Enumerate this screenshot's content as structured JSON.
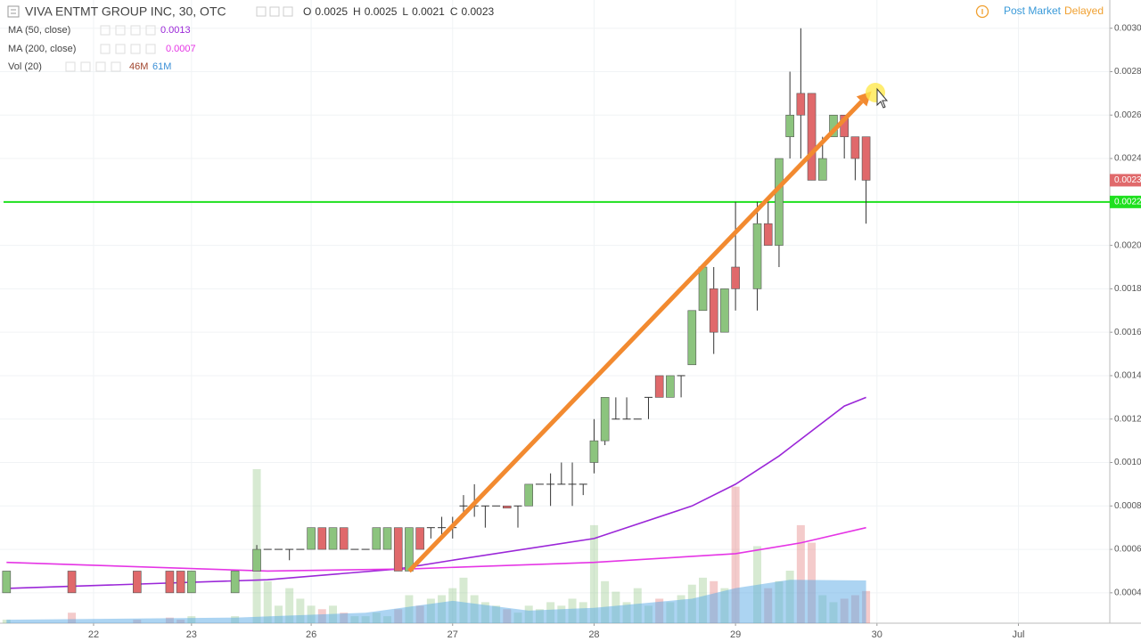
{
  "chart_data": {
    "type": "candlestick",
    "title": "VIVA ENTMT GROUP INC, 30, OTC",
    "ohlc_labels": [
      "O",
      "H",
      "L",
      "C"
    ],
    "status": [
      "Post Market",
      "Delayed"
    ],
    "x": [
      -8,
      -2,
      4,
      7,
      8,
      9,
      13,
      15,
      16,
      17,
      18,
      19,
      20,
      21,
      22,
      23,
      24,
      25,
      26,
      27,
      28,
      29,
      30,
      31,
      32,
      33,
      34,
      35,
      36,
      37,
      38,
      39,
      40,
      41,
      42,
      43,
      44,
      45,
      46,
      47,
      48,
      49,
      50,
      51,
      52,
      53,
      54,
      55,
      56,
      57,
      58,
      59,
      61,
      62,
      63,
      64,
      65,
      66,
      67,
      68,
      69,
      70,
      71
    ],
    "open": [
      0.0004,
      0.0005,
      0.0005,
      0.0005,
      0.0005,
      0.0004,
      0.0004,
      0.0005,
      0.0006,
      0.0006,
      0.0006,
      0.0006,
      0.0006,
      0.0007,
      0.0006,
      0.0007,
      0.0006,
      0.0006,
      0.0006,
      0.0006,
      0.0007,
      0.0005,
      0.0007,
      0.0007,
      0.0007,
      0.0007,
      0.0008,
      0.0008,
      0.0008,
      0.0008,
      0.0008,
      0.0008,
      0.0008,
      0.0009,
      0.0009,
      0.0009,
      0.0009,
      0.0009,
      0.001,
      0.0011,
      0.0012,
      0.0012,
      0.0012,
      0.0013,
      0.0014,
      0.0013,
      0.0014,
      0.00145,
      0.0017,
      0.0018,
      0.0016,
      0.0019,
      0.0018,
      0.0021,
      0.002,
      0.0025,
      0.0027,
      0.0027,
      0.0023,
      0.0025,
      0.0026,
      0.0025,
      0.0025
    ],
    "high": [
      0.0005,
      0.0005,
      0.0005,
      0.0005,
      0.0005,
      0.0005,
      0.0005,
      0.00062,
      0.0006,
      0.0006,
      0.0006,
      0.0006,
      0.0007,
      0.0007,
      0.0007,
      0.0007,
      0.0006,
      0.0006,
      0.0007,
      0.0007,
      0.0007,
      0.0007,
      0.0007,
      0.0007,
      0.00075,
      0.00075,
      0.00085,
      0.0009,
      0.0008,
      0.0008,
      0.0008,
      0.0008,
      0.0009,
      0.0009,
      0.00095,
      0.001,
      0.001,
      0.0009,
      0.0012,
      0.0013,
      0.0013,
      0.0013,
      0.0012,
      0.0013,
      0.0014,
      0.0014,
      0.0014,
      0.0017,
      0.0019,
      0.0019,
      0.0018,
      0.0022,
      0.0022,
      0.0022,
      0.0024,
      0.0028,
      0.003,
      0.0027,
      0.0025,
      0.0026,
      0.0026,
      0.0025,
      0.0025
    ],
    "low": [
      0.0004,
      0.0004,
      0.0004,
      0.0004,
      0.0004,
      0.0004,
      0.0004,
      0.0005,
      0.0006,
      0.0006,
      0.00055,
      0.0006,
      0.0006,
      0.0006,
      0.0006,
      0.0006,
      0.0006,
      0.0006,
      0.0006,
      0.0006,
      0.0005,
      0.0005,
      0.0006,
      0.00065,
      0.00065,
      0.00065,
      0.00075,
      0.00075,
      0.0007,
      0.0008,
      0.00079,
      0.0007,
      0.0008,
      0.0009,
      0.0008,
      0.0009,
      0.0008,
      0.00085,
      0.00095,
      0.00108,
      0.0012,
      0.0012,
      0.0012,
      0.0012,
      0.0013,
      0.0013,
      0.0013,
      0.00145,
      0.0017,
      0.0015,
      0.0016,
      0.0017,
      0.0017,
      0.002,
      0.0019,
      0.0024,
      0.0024,
      0.0023,
      0.0023,
      0.0025,
      0.0024,
      0.0023,
      0.0021
    ],
    "close": [
      0.0005,
      0.0004,
      0.0004,
      0.0004,
      0.0004,
      0.0005,
      0.0005,
      0.0006,
      0.0006,
      0.0006,
      0.0006,
      0.0006,
      0.0007,
      0.0006,
      0.0007,
      0.0006,
      0.0006,
      0.0006,
      0.0007,
      0.0007,
      0.0005,
      0.0007,
      0.0006,
      0.0007,
      0.0007,
      0.0007,
      0.0008,
      0.0008,
      0.0008,
      0.0008,
      0.00079,
      0.0008,
      0.0009,
      0.0009,
      0.0009,
      0.0009,
      0.0009,
      0.0009,
      0.0011,
      0.0013,
      0.0012,
      0.0012,
      0.0012,
      0.0013,
      0.0013,
      0.0014,
      0.0014,
      0.0017,
      0.0019,
      0.0016,
      0.0018,
      0.0018,
      0.0021,
      0.002,
      0.0024,
      0.0026,
      0.0026,
      0.0023,
      0.0024,
      0.0026,
      0.0025,
      0.0024,
      0.0023
    ],
    "up_color": "#8cc47e",
    "down_color": "#e0696b",
    "xlim": [
      -8.6,
      93.4
    ],
    "xticks": [
      {
        "value": 0,
        "label": "22"
      },
      {
        "value": 9,
        "label": "23"
      },
      {
        "value": 20,
        "label": "26"
      },
      {
        "value": 33,
        "label": "27"
      },
      {
        "value": 46,
        "label": "28"
      },
      {
        "value": 59,
        "label": "29"
      },
      {
        "value": 72,
        "label": "30"
      },
      {
        "value": 85,
        "label": "Jul"
      }
    ],
    "ylim": [
      0.00026,
      0.00313
    ],
    "yticks": [
      0.0004,
      0.0006,
      0.0008,
      {
        "value": 0.001,
        "label": "0.0010"
      },
      0.0012,
      0.0014,
      0.0016,
      0.0018,
      {
        "value": 0.002,
        "label": "0.0020"
      },
      0.0022,
      0.0024,
      0.0026,
      0.0028,
      {
        "value": 0.003,
        "label": "0.0030"
      }
    ],
    "grid": true,
    "series": [
      {
        "name": "MA (50, close)",
        "color": "#9b27d8",
        "x": [
          -8,
          16,
          28,
          33,
          46,
          55,
          59,
          63,
          69,
          71
        ],
        "values": [
          0.00042,
          0.00046,
          0.00051,
          0.00055,
          0.00065,
          0.0008,
          0.0009,
          0.00103,
          0.00126,
          0.0013
        ]
      },
      {
        "name": "MA (200, close)",
        "color": "#e535e5",
        "x": [
          -8,
          16,
          29,
          46,
          59,
          65,
          71
        ],
        "values": [
          0.00054,
          0.0005,
          0.00051,
          0.00054,
          0.00058,
          0.00063,
          0.0007
        ]
      }
    ],
    "volume": {
      "name": "Vol (20)",
      "values": [
        5,
        15,
        5,
        8,
        5,
        10,
        10,
        220,
        60,
        25,
        50,
        35,
        25,
        20,
        25,
        15,
        10,
        10,
        15,
        10,
        20,
        40,
        25,
        35,
        40,
        50,
        65,
        40,
        30,
        25,
        20,
        15,
        25,
        20,
        30,
        25,
        35,
        30,
        140,
        60,
        45,
        30,
        50,
        25,
        35,
        30,
        40,
        55,
        65,
        60,
        50,
        195,
        110,
        50,
        60,
        75,
        140,
        115,
        40,
        30,
        35,
        40,
        46
      ],
      "ylim": [
        0,
        890
      ],
      "legend_labels": [
        "46M",
        "61M"
      ],
      "label_colors": [
        "#a0442c",
        "#3a8fd6"
      ],
      "ma_color": "#5aa9e6",
      "ma_x": [
        -8,
        13,
        25,
        33,
        40,
        46,
        55,
        59,
        64,
        71
      ],
      "ma_values": [
        5,
        8,
        15,
        32,
        18,
        22,
        35,
        50,
        62,
        61
      ]
    },
    "hline": {
      "value": 0.0022,
      "color": "#1ee01e"
    },
    "arrow": {
      "x": [
        29,
        71.5
      ],
      "y": [
        0.0005,
        0.00271
      ],
      "color": "#f28a30"
    }
  }
}
